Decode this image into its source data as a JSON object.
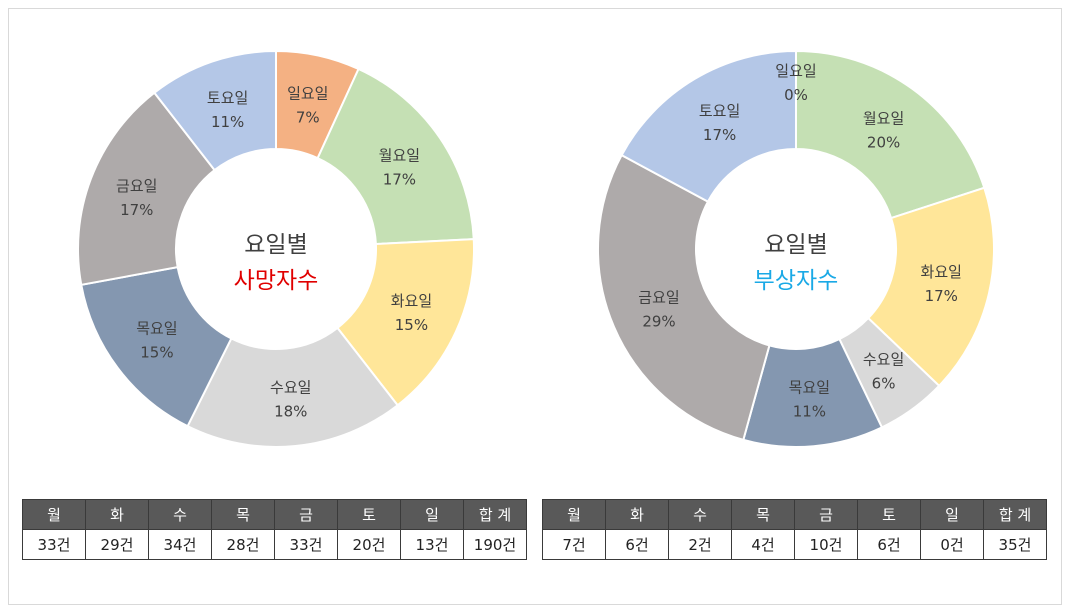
{
  "colors": {
    "월요일": "#c5e0b4",
    "화요일": "#ffe699",
    "수요일": "#d9d9d9",
    "목요일": "#8497b0",
    "금요일": "#aeaaaa",
    "토요일": "#b4c7e7",
    "일요일": "#f4b183",
    "deaths_accent": "#e00000",
    "injuries_accent": "#1aa9e6",
    "center_text": "#404040",
    "table_header_bg": "#595959"
  },
  "chart_data": [
    {
      "type": "pie",
      "variant": "donut",
      "center_title": "요일별",
      "center_subtitle": "사망자수",
      "categories": [
        "월요일",
        "화요일",
        "수요일",
        "목요일",
        "금요일",
        "토요일",
        "일요일"
      ],
      "values": [
        33,
        29,
        34,
        28,
        33,
        20,
        13
      ],
      "labels": [
        "17%",
        "15%",
        "18%",
        "15%",
        "17%",
        "11%",
        "7%"
      ]
    },
    {
      "type": "pie",
      "variant": "donut",
      "center_title": "요일별",
      "center_subtitle": "부상자수",
      "categories": [
        "월요일",
        "화요일",
        "수요일",
        "목요일",
        "금요일",
        "토요일",
        "일요일"
      ],
      "values": [
        7,
        6,
        2,
        4,
        10,
        6,
        0
      ],
      "labels": [
        "20%",
        "17%",
        "6%",
        "11%",
        "29%",
        "17%",
        "0%"
      ]
    }
  ],
  "tables": [
    {
      "headers": [
        "월",
        "화",
        "수",
        "목",
        "금",
        "토",
        "일",
        "합 계"
      ],
      "cells": [
        "33건",
        "29건",
        "34건",
        "28건",
        "33건",
        "20건",
        "13건",
        "190건"
      ]
    },
    {
      "headers": [
        "월",
        "화",
        "수",
        "목",
        "금",
        "토",
        "일",
        "합 계"
      ],
      "cells": [
        "7건",
        "6건",
        "2건",
        "4건",
        "10건",
        "6건",
        "0건",
        "35건"
      ]
    }
  ]
}
